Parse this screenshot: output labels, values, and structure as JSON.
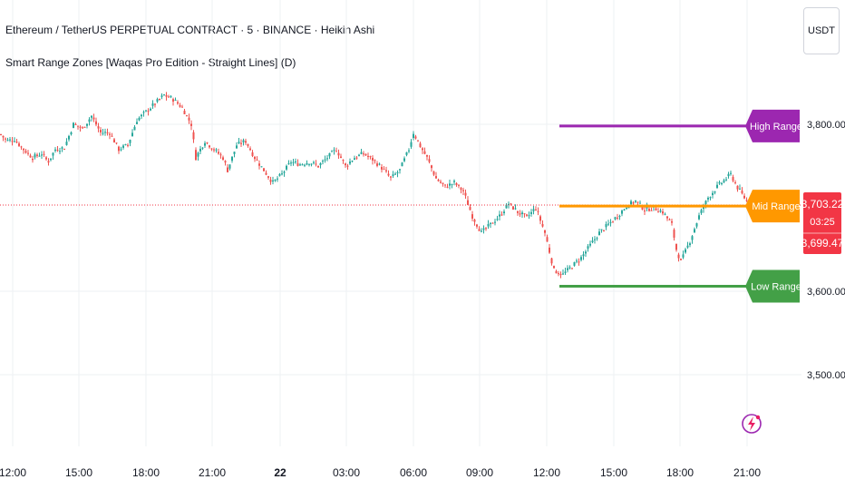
{
  "header": {
    "title": "Ethereum / TetherUS PERPETUAL CONTRACT · 5 · BINANCE · Heikin Ashi",
    "indicator": "Smart Range Zones [Waqas Pro Edition - Straight Lines] (D)"
  },
  "currency_button": "USDT",
  "colors": {
    "up": "#26a69a",
    "down": "#ef5350",
    "high_range": "#9c27b0",
    "mid_range": "#ff9800",
    "low_range": "#43a047",
    "price_label": "#f23645",
    "grid": "#eef0f3",
    "axis_text": "#131722"
  },
  "chart_data": {
    "type": "candlestick",
    "symbol": "ETHUSDT.P",
    "timeframe": "5",
    "style": "Heikin Ashi",
    "x_ticks": [
      "12:00",
      "15:00",
      "18:00",
      "21:00",
      "22",
      "03:00",
      "06:00",
      "09:00",
      "12:00",
      "15:00",
      "18:00",
      "21:00"
    ],
    "y_ticks": [
      "3,800.00",
      "3,600.00",
      "3,500.00"
    ],
    "ylim": [
      3450,
      3870
    ],
    "current_price": "3,703.22",
    "countdown": "03:25",
    "range_low_label_value": "3,699.47",
    "zones": [
      {
        "name": "High Range",
        "value": 3798
      },
      {
        "name": "Mid Range",
        "value": 3702
      },
      {
        "name": "Low Range",
        "value": 3606
      }
    ],
    "price_path": [
      [
        0,
        3788
      ],
      [
        6,
        3780
      ],
      [
        15,
        3782
      ],
      [
        25,
        3770
      ],
      [
        35,
        3760
      ],
      [
        45,
        3765
      ],
      [
        52,
        3755
      ],
      [
        60,
        3770
      ],
      [
        70,
        3772
      ],
      [
        80,
        3800
      ],
      [
        90,
        3795
      ],
      [
        100,
        3810
      ],
      [
        110,
        3790
      ],
      [
        120,
        3790
      ],
      [
        130,
        3770
      ],
      [
        140,
        3775
      ],
      [
        150,
        3805
      ],
      [
        160,
        3815
      ],
      [
        170,
        3825
      ],
      [
        180,
        3835
      ],
      [
        190,
        3830
      ],
      [
        200,
        3820
      ],
      [
        210,
        3800
      ],
      [
        215,
        3760
      ],
      [
        225,
        3780
      ],
      [
        235,
        3770
      ],
      [
        245,
        3760
      ],
      [
        250,
        3745
      ],
      [
        260,
        3775
      ],
      [
        270,
        3780
      ],
      [
        280,
        3760
      ],
      [
        290,
        3745
      ],
      [
        300,
        3730
      ],
      [
        310,
        3740
      ],
      [
        320,
        3755
      ],
      [
        330,
        3752
      ],
      [
        340,
        3755
      ],
      [
        350,
        3750
      ],
      [
        360,
        3760
      ],
      [
        370,
        3770
      ],
      [
        380,
        3750
      ],
      [
        390,
        3760
      ],
      [
        400,
        3765
      ],
      [
        410,
        3758
      ],
      [
        420,
        3748
      ],
      [
        430,
        3735
      ],
      [
        440,
        3745
      ],
      [
        450,
        3770
      ],
      [
        455,
        3790
      ],
      [
        462,
        3775
      ],
      [
        470,
        3760
      ],
      [
        480,
        3735
      ],
      [
        490,
        3725
      ],
      [
        500,
        3730
      ],
      [
        510,
        3720
      ],
      [
        520,
        3690
      ],
      [
        530,
        3670
      ],
      [
        540,
        3680
      ],
      [
        550,
        3690
      ],
      [
        560,
        3705
      ],
      [
        570,
        3695
      ],
      [
        580,
        3688
      ],
      [
        590,
        3700
      ],
      [
        600,
        3670
      ],
      [
        610,
        3625
      ],
      [
        620,
        3620
      ],
      [
        630,
        3630
      ],
      [
        640,
        3640
      ],
      [
        650,
        3655
      ],
      [
        660,
        3670
      ],
      [
        670,
        3680
      ],
      [
        680,
        3690
      ],
      [
        690,
        3702
      ],
      [
        700,
        3708
      ],
      [
        710,
        3698
      ],
      [
        720,
        3700
      ],
      [
        730,
        3695
      ],
      [
        740,
        3680
      ],
      [
        745,
        3650
      ],
      [
        750,
        3635
      ],
      [
        760,
        3660
      ],
      [
        770,
        3690
      ],
      [
        780,
        3712
      ],
      [
        790,
        3725
      ],
      [
        800,
        3735
      ],
      [
        805,
        3740
      ],
      [
        812,
        3725
      ],
      [
        820,
        3712
      ],
      [
        826,
        3703
      ]
    ]
  }
}
